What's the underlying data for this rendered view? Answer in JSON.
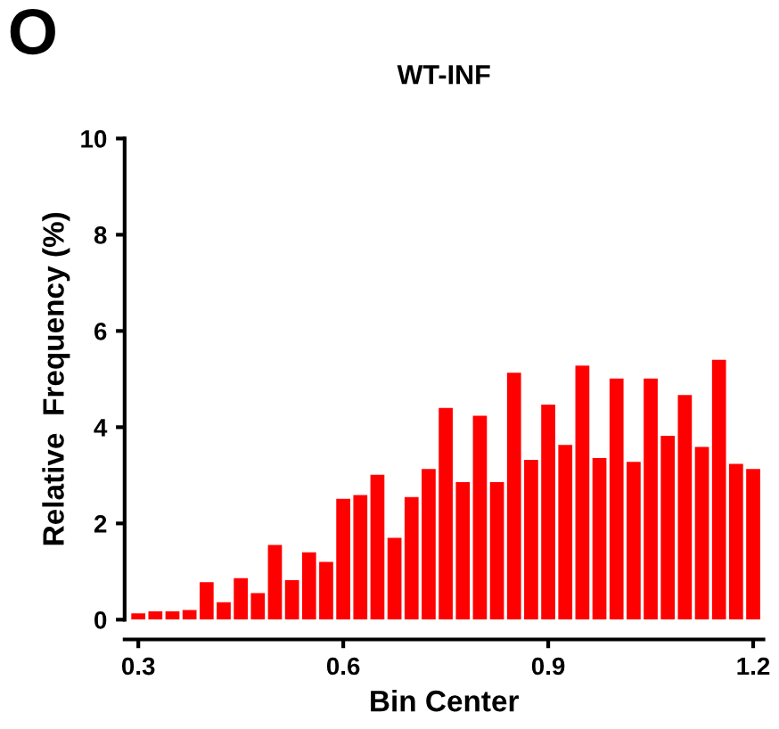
{
  "chart_data": {
    "type": "histogram",
    "title": "WT-INF",
    "xlabel": "Bin Center",
    "ylabel": "Relative  Frequency (%)",
    "annotations": [
      "O"
    ],
    "bins": [
      0.2875,
      0.3125,
      0.3375,
      0.3625,
      0.3875,
      0.4125,
      0.4375,
      0.4625,
      0.4875,
      0.5125,
      0.5375,
      0.5625,
      0.5875,
      0.6125,
      0.6375,
      0.6625,
      0.6875,
      0.7125,
      0.7375,
      0.7625,
      0.7875,
      0.8125,
      0.8375,
      0.8625,
      0.8875,
      0.9125,
      0.9375,
      0.9625,
      0.9875,
      1.0125,
      1.0375,
      1.0625,
      1.0875,
      1.1125,
      1.1375,
      1.1625,
      1.1875,
      1.2125
    ],
    "values": [
      0.13,
      0.17,
      0.17,
      0.2,
      0.78,
      0.36,
      0.86,
      0.55,
      1.55,
      0.82,
      1.4,
      1.2,
      2.51,
      2.59,
      3.01,
      1.7,
      2.55,
      3.13,
      4.4,
      2.86,
      4.24,
      2.86,
      5.13,
      3.32,
      4.47,
      3.63,
      5.28,
      3.36,
      5.01,
      3.28,
      5.01,
      3.82,
      4.67,
      3.59,
      5.4,
      3.24,
      3.13
    ],
    "color": "#ff0000",
    "xlim": [
      0.28,
      1.215
    ],
    "xticks": [
      0.3,
      0.6,
      0.9,
      1.2
    ],
    "ylim": [
      0,
      10
    ],
    "yticks": [
      0,
      2,
      4,
      6,
      8,
      10
    ],
    "grid": false,
    "legend": false
  }
}
